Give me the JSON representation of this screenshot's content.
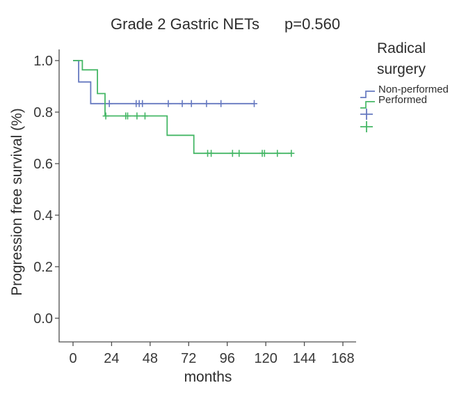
{
  "title": "Grade 2 Gastric NETs",
  "p_value_label": "p=0.560",
  "axes": {
    "x_label": "months",
    "y_label": "Progression free survival (%)",
    "x_ticks": [
      0,
      24,
      48,
      72,
      96,
      120,
      144,
      168
    ],
    "y_ticks": [
      {
        "label": "1.0",
        "value": 1.0
      },
      {
        "label": "0.8",
        "value": 0.8
      },
      {
        "label": "0.6",
        "value": 0.6
      },
      {
        "label": "0.4",
        "value": 0.4
      },
      {
        "label": "0.2",
        "value": 0.2
      },
      {
        "label": "0.0",
        "value": 0.0
      }
    ]
  },
  "legend": {
    "title": "Radical surgery",
    "title_lines": [
      "Radical",
      "surgery"
    ],
    "items": [
      {
        "label": "Non-performed",
        "symbol": "step",
        "series": "Non-performed"
      },
      {
        "label": "Performed",
        "symbol": "step",
        "series": "Performed"
      },
      {
        "label": "",
        "symbol": "plus",
        "series": "Non-performed"
      },
      {
        "label": "",
        "symbol": "plus",
        "series": "Performed"
      }
    ]
  },
  "colors": {
    "non_performed": "#6679c0",
    "performed": "#45b766",
    "axis": "#4d4d4d",
    "text": "#2d2d2d",
    "tick_text": "#383838"
  },
  "chart_data": {
    "type": "line",
    "subtype": "kaplan-meier-step",
    "title": "Grade 2 Gastric NETs",
    "annotation": "p=0.560",
    "xlabel": "months",
    "ylabel": "Progression free survival (%)",
    "xlim": [
      0,
      168
    ],
    "ylim": [
      0.0,
      1.0
    ],
    "grid": false,
    "legend_position": "right",
    "series": [
      {
        "name": "Non-performed",
        "color": "#6679c0",
        "steps": [
          [
            0,
            1.0
          ],
          [
            3.5,
            1.0
          ],
          [
            3.5,
            0.917
          ],
          [
            11,
            0.917
          ],
          [
            11,
            0.833
          ],
          [
            113,
            0.833
          ]
        ],
        "censors": [
          [
            22.6,
            0.833
          ],
          [
            39.3,
            0.833
          ],
          [
            41.2,
            0.833
          ],
          [
            43.2,
            0.833
          ],
          [
            59.3,
            0.833
          ],
          [
            68,
            0.833
          ],
          [
            73.7,
            0.833
          ],
          [
            83.1,
            0.833
          ],
          [
            92.1,
            0.833
          ],
          [
            112.8,
            0.833
          ]
        ]
      },
      {
        "name": "Performed",
        "color": "#45b766",
        "steps": [
          [
            0,
            1.0
          ],
          [
            5.8,
            1.0
          ],
          [
            5.8,
            0.964
          ],
          [
            15.2,
            0.964
          ],
          [
            15.2,
            0.872
          ],
          [
            19.9,
            0.872
          ],
          [
            19.9,
            0.785
          ],
          [
            58.6,
            0.785
          ],
          [
            58.6,
            0.71
          ],
          [
            75.2,
            0.71
          ],
          [
            75.2,
            0.64
          ],
          [
            135.9,
            0.64
          ]
        ],
        "censors": [
          [
            20.4,
            0.785
          ],
          [
            32.8,
            0.785
          ],
          [
            34.0,
            0.785
          ],
          [
            39.8,
            0.785
          ],
          [
            44.8,
            0.785
          ],
          [
            83.8,
            0.64
          ],
          [
            86.0,
            0.64
          ],
          [
            99.3,
            0.64
          ],
          [
            103.4,
            0.64
          ],
          [
            117.8,
            0.64
          ],
          [
            119.2,
            0.64
          ],
          [
            127.2,
            0.64
          ],
          [
            135.9,
            0.64
          ]
        ]
      }
    ]
  }
}
